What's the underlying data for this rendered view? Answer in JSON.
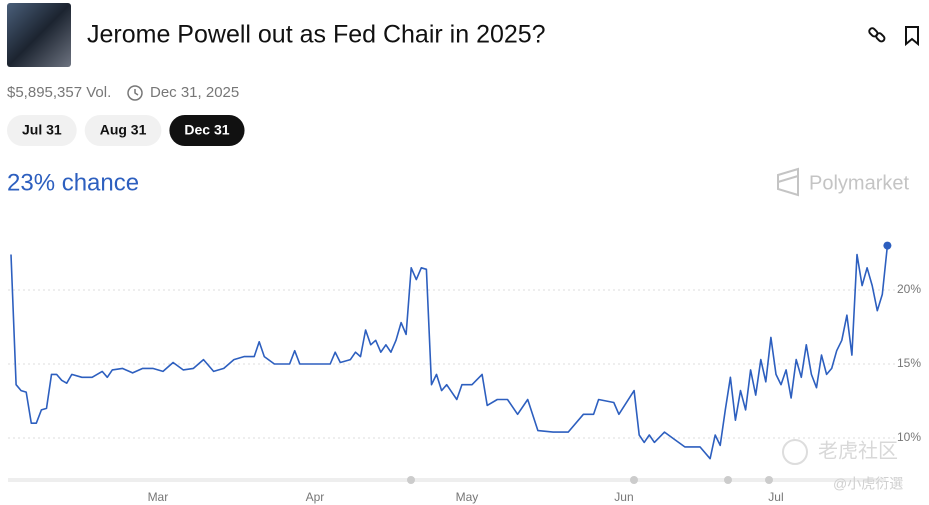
{
  "header": {
    "title": "Jerome Powell out as Fed Chair in 2025?",
    "volume": "$5,895,357 Vol.",
    "end_date": "Dec 31, 2025"
  },
  "tabs": [
    "Jul 31",
    "Aug 31",
    "Dec 31"
  ],
  "active_tab": 2,
  "chance": "23% chance",
  "brand": "Polymarket",
  "watermark": [
    "老虎社区",
    "@小虎衍選"
  ],
  "chart_data": {
    "type": "line",
    "color": "#2d5fbf",
    "x": [
      0,
      1,
      2,
      3,
      4,
      5,
      6,
      7,
      8,
      9,
      10,
      11,
      12,
      14,
      16,
      18,
      19,
      20,
      22,
      24,
      26,
      28,
      30,
      32,
      34,
      36,
      38,
      40,
      42,
      44,
      46,
      48,
      49,
      50,
      52,
      55,
      56,
      57,
      60,
      63,
      64,
      65,
      67,
      68,
      69,
      70,
      71,
      72,
      73,
      74,
      75,
      76,
      77,
      78,
      79,
      80,
      81,
      82,
      83,
      84,
      85,
      86,
      87,
      88,
      89,
      91,
      93,
      94,
      96,
      98,
      100,
      102,
      104,
      107,
      110,
      113,
      115,
      116,
      119,
      120,
      123,
      124,
      125,
      126,
      127,
      129,
      131,
      133,
      136,
      138,
      139,
      140,
      141,
      142,
      143,
      144,
      145,
      146,
      147,
      148,
      149,
      150,
      151,
      152,
      153,
      154,
      155,
      156,
      157,
      158,
      159,
      160,
      161,
      162,
      163,
      164,
      165,
      166,
      167,
      168,
      169,
      170,
      171,
      172,
      173
    ],
    "values": [
      22.4,
      13.6,
      13.2,
      13.1,
      11.0,
      11.0,
      11.9,
      12.0,
      14.3,
      14.3,
      13.9,
      13.7,
      14.3,
      14.1,
      14.1,
      14.5,
      14.1,
      14.6,
      14.7,
      14.4,
      14.7,
      14.7,
      14.5,
      15.1,
      14.6,
      14.7,
      15.3,
      14.5,
      14.7,
      15.3,
      15.5,
      15.5,
      16.5,
      15.5,
      15.0,
      15.0,
      15.9,
      15.0,
      15.0,
      15.0,
      15.8,
      15.1,
      15.3,
      15.8,
      15.5,
      17.3,
      16.3,
      16.6,
      15.8,
      16.3,
      15.8,
      16.6,
      17.8,
      17.0,
      21.5,
      20.7,
      21.5,
      21.4,
      13.6,
      14.3,
      13.2,
      13.6,
      13.1,
      12.6,
      13.6,
      13.6,
      14.3,
      12.2,
      12.6,
      12.6,
      11.6,
      12.6,
      10.5,
      10.4,
      10.4,
      11.6,
      11.6,
      12.6,
      12.4,
      11.6,
      13.2,
      10.2,
      9.7,
      10.2,
      9.7,
      10.4,
      9.9,
      9.4,
      9.4,
      8.6,
      10.2,
      9.5,
      11.9,
      14.1,
      11.2,
      13.2,
      11.9,
      14.6,
      12.9,
      15.3,
      13.8,
      16.8,
      14.3,
      13.6,
      14.6,
      12.7,
      15.3,
      14.1,
      16.3,
      14.3,
      13.4,
      15.6,
      14.3,
      14.7,
      15.9,
      16.6,
      18.3,
      15.6,
      22.4,
      20.3,
      21.5,
      20.3,
      18.6,
      19.7,
      23
    ],
    "xlim": [
      0,
      173
    ],
    "xticks": [
      {
        "value": 29,
        "label": "Mar"
      },
      {
        "value": 60,
        "label": "Apr"
      },
      {
        "value": 90,
        "label": "May"
      },
      {
        "value": 121,
        "label": "Jun"
      },
      {
        "value": 151,
        "label": "Jul"
      }
    ],
    "ylim": [
      8,
      24
    ],
    "yticks": [
      {
        "value": 10,
        "label": "10%"
      },
      {
        "value": 15,
        "label": "15%"
      },
      {
        "value": 20,
        "label": "20%"
      }
    ],
    "grid": true
  }
}
